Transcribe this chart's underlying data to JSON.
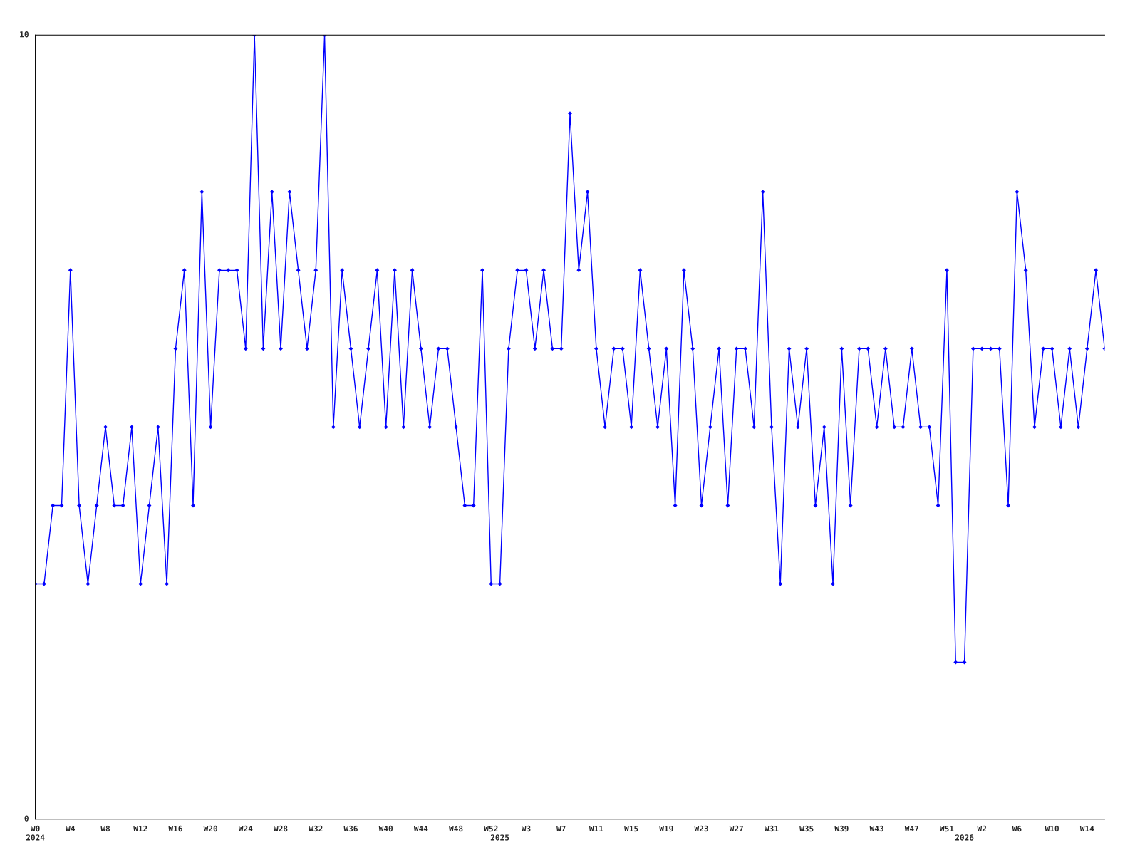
{
  "chart_data": {
    "type": "line",
    "categories": [
      "W0\n2024",
      null,
      null,
      null,
      "W4",
      null,
      null,
      null,
      "W8",
      null,
      null,
      null,
      "W12",
      null,
      null,
      null,
      "W16",
      null,
      null,
      null,
      "W20",
      null,
      null,
      null,
      "W24",
      null,
      null,
      null,
      "W28",
      null,
      null,
      null,
      "W32",
      null,
      null,
      null,
      "W36",
      null,
      null,
      null,
      "W40",
      null,
      null,
      null,
      "W44",
      null,
      null,
      null,
      "W48",
      null,
      null,
      null,
      "W52",
      "\n2025",
      null,
      null,
      "W3",
      null,
      null,
      null,
      "W7",
      null,
      null,
      null,
      "W11",
      null,
      null,
      null,
      "W15",
      null,
      null,
      null,
      "W19",
      null,
      null,
      null,
      "W23",
      null,
      null,
      null,
      "W27",
      null,
      null,
      null,
      "W31",
      null,
      null,
      null,
      "W35",
      null,
      null,
      null,
      "W39",
      null,
      null,
      null,
      "W43",
      null,
      null,
      null,
      "W47",
      null,
      null,
      null,
      "W51",
      null,
      "\n2026",
      null,
      "W2",
      null,
      null,
      null,
      "W6",
      null,
      null,
      null,
      "W10",
      null,
      null,
      null,
      "W14",
      null,
      null
    ],
    "series": [
      {
        "color": "#0000ff",
        "values": [
          3,
          3,
          4,
          4,
          7,
          4,
          3,
          4,
          5,
          4,
          4,
          5,
          3,
          4,
          5,
          3,
          6,
          7,
          4,
          8,
          5,
          7,
          7,
          7,
          6,
          10,
          6,
          8,
          6,
          8,
          7,
          6,
          7,
          10,
          5,
          7,
          6,
          5,
          6,
          7,
          5,
          7,
          5,
          7,
          6,
          5,
          6,
          6,
          5,
          4,
          4,
          7,
          3,
          3,
          6,
          7,
          7,
          6,
          7,
          6,
          6,
          9,
          7,
          8,
          6,
          5,
          6,
          6,
          5,
          7,
          6,
          5,
          6,
          4,
          7,
          6,
          4,
          5,
          6,
          4,
          6,
          6,
          5,
          8,
          5,
          3,
          6,
          5,
          6,
          4,
          5,
          3,
          6,
          4,
          6,
          6,
          5,
          6,
          5,
          5,
          6,
          5,
          5,
          4,
          7,
          2,
          2,
          6,
          6,
          6,
          6,
          4,
          8,
          7,
          5,
          6,
          6,
          5,
          6,
          5,
          6,
          7,
          6
        ]
      }
    ],
    "ylim": [
      0,
      10
    ],
    "yticks": [
      0,
      10
    ],
    "marker": "diamond",
    "line_style": "solid",
    "grid": false,
    "legend": false
  }
}
